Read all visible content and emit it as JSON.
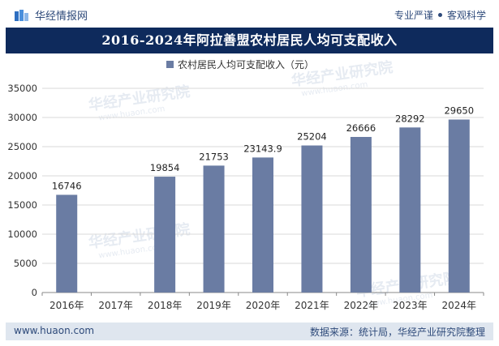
{
  "header": {
    "brand_name": "华经情报网",
    "tagline_left": "专业严谨",
    "tagline_right": "客观科学"
  },
  "chart_data": {
    "type": "bar",
    "title": "2016-2024年阿拉善盟农村居民人均可支配收入",
    "legend": [
      "农村居民人均可支配收入（元）"
    ],
    "categories": [
      "2016年",
      "2017年",
      "2018年",
      "2019年",
      "2020年",
      "2021年",
      "2022年",
      "2023年",
      "2024年"
    ],
    "values": [
      16746,
      null,
      19854,
      21753,
      23143.9,
      25204,
      26666,
      28292,
      29650
    ],
    "value_labels": [
      "16746",
      "",
      "19854",
      "21753",
      "23143.9",
      "25204",
      "26666",
      "28292",
      "29650"
    ],
    "yticks": [
      "0",
      "5000",
      "10000",
      "15000",
      "20000",
      "25000",
      "30000",
      "35000"
    ],
    "ylim": [
      0,
      35000
    ],
    "xlabel": "",
    "ylabel": "",
    "grid": true,
    "legend_position": "top-center",
    "bar_color": "#6a7ca3"
  },
  "watermarks": [
    "华经产业研究院",
    "www.huaon.com"
  ],
  "footer": {
    "website": "www.huaon.com",
    "source": "数据来源：统计局，华经产业研究院整理"
  }
}
